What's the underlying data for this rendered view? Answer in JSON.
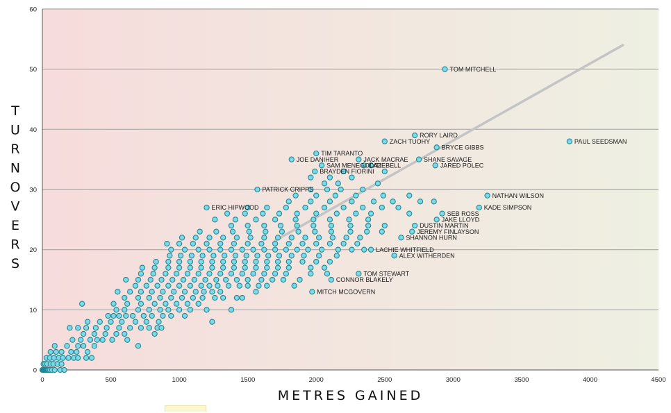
{
  "chart_data": {
    "type": "scatter",
    "xlabel": "METRES GAINED",
    "ylabel": "TURNOVERS",
    "xlim": [
      0,
      4500
    ],
    "ylim": [
      0,
      60
    ],
    "x_ticks": [
      0,
      500,
      1000,
      1500,
      2000,
      2500,
      3000,
      3500,
      4000,
      4500
    ],
    "y_ticks": [
      0,
      10,
      20,
      30,
      40,
      50,
      60
    ],
    "grid": "horizontal",
    "trendline": {
      "x": [
        1700,
        4240
      ],
      "y": [
        21.5,
        54
      ]
    },
    "colors": {
      "point_fill": "#7fd8e6",
      "point_stroke": "#1e8795",
      "trendline": "#c4c4c4",
      "grid": "#a8a8a8",
      "bg_left": "#f6dcdc",
      "bg_right": "#eef0e2"
    },
    "labeled_points": [
      {
        "name": "TOM MITCHELL",
        "x": 2940,
        "y": 50
      },
      {
        "name": "PAUL SEEDSMAN",
        "x": 3850,
        "y": 38
      },
      {
        "name": "RORY LAIRD",
        "x": 2720,
        "y": 39
      },
      {
        "name": "ZACH TUOHY",
        "x": 2500,
        "y": 38
      },
      {
        "name": "BRYCE GIBBS",
        "x": 2880,
        "y": 37
      },
      {
        "name": "TIM TARANTO",
        "x": 2000,
        "y": 36
      },
      {
        "name": "JOE DANIHER",
        "x": 1820,
        "y": 35
      },
      {
        "name": "JACK MACRAE",
        "x": 2310,
        "y": 35
      },
      {
        "name": "SHANE SAVAGE",
        "x": 2750,
        "y": 35
      },
      {
        "name": "SAM MENEGOLA",
        "x": 2040,
        "y": 34
      },
      {
        "name": "CAZ",
        "x": 2350,
        "y": 34
      },
      {
        "name": "TIEBELL",
        "x": 2400,
        "y": 34
      },
      {
        "name": "JARED POLEC",
        "x": 2870,
        "y": 34
      },
      {
        "name": "BRAYDEN FIORINI",
        "x": 1990,
        "y": 33
      },
      {
        "name": "PATRICK CRIPPS",
        "x": 1570,
        "y": 30
      },
      {
        "name": "NATHAN WILSON",
        "x": 3250,
        "y": 29
      },
      {
        "name": "ERIC HIPWOOD",
        "x": 1200,
        "y": 27
      },
      {
        "name": "KADE SIMPSON",
        "x": 3190,
        "y": 27
      },
      {
        "name": "SEB ROSS",
        "x": 2920,
        "y": 26
      },
      {
        "name": "JAKE LLOYD",
        "x": 2880,
        "y": 25
      },
      {
        "name": "DUSTIN MARTIN",
        "x": 2720,
        "y": 24
      },
      {
        "name": "JEREMY FINLAYSON",
        "x": 2700,
        "y": 23
      },
      {
        "name": "SHANNON HURN",
        "x": 2620,
        "y": 22
      },
      {
        "name": "LACHIE WHITFIELD",
        "x": 2400,
        "y": 20
      },
      {
        "name": "ALEX WITHERDEN",
        "x": 2570,
        "y": 19
      },
      {
        "name": "TOM STEWART",
        "x": 2310,
        "y": 16
      },
      {
        "name": "CONNOR BLAKELY",
        "x": 2110,
        "y": 15
      },
      {
        "name": "MITCH MCGOVERN",
        "x": 1970,
        "y": 13
      }
    ],
    "points": [
      [
        0,
        0
      ],
      [
        5,
        0
      ],
      [
        10,
        0
      ],
      [
        15,
        0
      ],
      [
        20,
        0
      ],
      [
        25,
        0
      ],
      [
        30,
        0
      ],
      [
        35,
        0
      ],
      [
        40,
        0
      ],
      [
        45,
        0
      ],
      [
        55,
        0
      ],
      [
        70,
        0
      ],
      [
        90,
        0
      ],
      [
        130,
        0
      ],
      [
        160,
        0
      ],
      [
        8,
        1
      ],
      [
        20,
        1
      ],
      [
        35,
        1
      ],
      [
        60,
        1
      ],
      [
        80,
        1
      ],
      [
        110,
        1
      ],
      [
        140,
        1
      ],
      [
        30,
        2
      ],
      [
        55,
        2
      ],
      [
        85,
        2
      ],
      [
        120,
        2
      ],
      [
        150,
        2
      ],
      [
        190,
        2
      ],
      [
        230,
        2
      ],
      [
        260,
        2
      ],
      [
        320,
        2
      ],
      [
        360,
        2
      ],
      [
        60,
        3
      ],
      [
        100,
        3
      ],
      [
        140,
        3
      ],
      [
        210,
        3
      ],
      [
        250,
        3
      ],
      [
        330,
        3
      ],
      [
        90,
        4
      ],
      [
        180,
        4
      ],
      [
        260,
        4
      ],
      [
        300,
        4
      ],
      [
        380,
        4
      ],
      [
        700,
        4
      ],
      [
        220,
        5
      ],
      [
        280,
        5
      ],
      [
        350,
        5
      ],
      [
        400,
        5
      ],
      [
        440,
        5
      ],
      [
        510,
        5
      ],
      [
        620,
        5
      ],
      [
        300,
        6
      ],
      [
        380,
        6
      ],
      [
        460,
        6
      ],
      [
        540,
        6
      ],
      [
        600,
        6
      ],
      [
        820,
        6
      ],
      [
        200,
        7
      ],
      [
        260,
        7
      ],
      [
        320,
        7
      ],
      [
        390,
        7
      ],
      [
        470,
        7
      ],
      [
        560,
        7
      ],
      [
        640,
        7
      ],
      [
        720,
        7
      ],
      [
        780,
        7
      ],
      [
        840,
        7
      ],
      [
        870,
        7
      ],
      [
        330,
        8
      ],
      [
        420,
        8
      ],
      [
        500,
        8
      ],
      [
        580,
        8
      ],
      [
        680,
        8
      ],
      [
        760,
        8
      ],
      [
        850,
        8
      ],
      [
        1240,
        8
      ],
      [
        480,
        9
      ],
      [
        520,
        9
      ],
      [
        560,
        9
      ],
      [
        610,
        9
      ],
      [
        660,
        9
      ],
      [
        740,
        9
      ],
      [
        800,
        9
      ],
      [
        880,
        9
      ],
      [
        940,
        9
      ],
      [
        1040,
        9
      ],
      [
        540,
        10
      ],
      [
        600,
        10
      ],
      [
        700,
        10
      ],
      [
        780,
        10
      ],
      [
        860,
        10
      ],
      [
        920,
        10
      ],
      [
        1000,
        10
      ],
      [
        1080,
        10
      ],
      [
        1200,
        10
      ],
      [
        1380,
        10
      ],
      [
        290,
        11
      ],
      [
        520,
        11
      ],
      [
        620,
        11
      ],
      [
        720,
        11
      ],
      [
        820,
        11
      ],
      [
        900,
        11
      ],
      [
        980,
        11
      ],
      [
        1060,
        11
      ],
      [
        1140,
        11
      ],
      [
        600,
        12
      ],
      [
        700,
        12
      ],
      [
        780,
        12
      ],
      [
        860,
        12
      ],
      [
        940,
        12
      ],
      [
        1020,
        12
      ],
      [
        1100,
        12
      ],
      [
        1170,
        12
      ],
      [
        1260,
        12
      ],
      [
        1320,
        12
      ],
      [
        1420,
        12
      ],
      [
        1460,
        12
      ],
      [
        550,
        13
      ],
      [
        640,
        13
      ],
      [
        720,
        13
      ],
      [
        800,
        13
      ],
      [
        880,
        13
      ],
      [
        960,
        13
      ],
      [
        1040,
        13
      ],
      [
        1120,
        13
      ],
      [
        1180,
        13
      ],
      [
        1240,
        13
      ],
      [
        1300,
        13
      ],
      [
        1560,
        13
      ],
      [
        680,
        14
      ],
      [
        760,
        14
      ],
      [
        840,
        14
      ],
      [
        920,
        14
      ],
      [
        1000,
        14
      ],
      [
        1080,
        14
      ],
      [
        1160,
        14
      ],
      [
        1220,
        14
      ],
      [
        1280,
        14
      ],
      [
        1360,
        14
      ],
      [
        1440,
        14
      ],
      [
        1500,
        14
      ],
      [
        1580,
        14
      ],
      [
        1640,
        14
      ],
      [
        1840,
        14
      ],
      [
        610,
        15
      ],
      [
        700,
        15
      ],
      [
        790,
        15
      ],
      [
        870,
        15
      ],
      [
        950,
        15
      ],
      [
        1030,
        15
      ],
      [
        1110,
        15
      ],
      [
        1190,
        15
      ],
      [
        1270,
        15
      ],
      [
        1340,
        15
      ],
      [
        1420,
        15
      ],
      [
        1500,
        15
      ],
      [
        1600,
        15
      ],
      [
        1680,
        15
      ],
      [
        1760,
        15
      ],
      [
        1880,
        15
      ],
      [
        720,
        16
      ],
      [
        810,
        16
      ],
      [
        900,
        16
      ],
      [
        980,
        16
      ],
      [
        1060,
        16
      ],
      [
        1140,
        16
      ],
      [
        1220,
        16
      ],
      [
        1300,
        16
      ],
      [
        1380,
        16
      ],
      [
        1460,
        16
      ],
      [
        1540,
        16
      ],
      [
        1620,
        16
      ],
      [
        1700,
        16
      ],
      [
        1780,
        16
      ],
      [
        1960,
        16
      ],
      [
        2080,
        16
      ],
      [
        730,
        17
      ],
      [
        820,
        17
      ],
      [
        920,
        17
      ],
      [
        1000,
        17
      ],
      [
        1080,
        17
      ],
      [
        1160,
        17
      ],
      [
        1240,
        17
      ],
      [
        1320,
        17
      ],
      [
        1400,
        17
      ],
      [
        1480,
        17
      ],
      [
        1560,
        17
      ],
      [
        1640,
        17
      ],
      [
        1720,
        17
      ],
      [
        1800,
        17
      ],
      [
        1960,
        17
      ],
      [
        2060,
        17
      ],
      [
        830,
        18
      ],
      [
        920,
        18
      ],
      [
        1000,
        18
      ],
      [
        1080,
        18
      ],
      [
        1160,
        18
      ],
      [
        1240,
        18
      ],
      [
        1320,
        18
      ],
      [
        1400,
        18
      ],
      [
        1480,
        18
      ],
      [
        1560,
        18
      ],
      [
        1640,
        18
      ],
      [
        1720,
        18
      ],
      [
        1800,
        18
      ],
      [
        1900,
        18
      ],
      [
        2000,
        18
      ],
      [
        2100,
        18
      ],
      [
        930,
        19
      ],
      [
        1010,
        19
      ],
      [
        1090,
        19
      ],
      [
        1170,
        19
      ],
      [
        1250,
        19
      ],
      [
        1330,
        19
      ],
      [
        1410,
        19
      ],
      [
        1490,
        19
      ],
      [
        1570,
        19
      ],
      [
        1650,
        19
      ],
      [
        1730,
        19
      ],
      [
        1820,
        19
      ],
      [
        1910,
        19
      ],
      [
        2020,
        19
      ],
      [
        2150,
        19
      ],
      [
        940,
        20
      ],
      [
        1040,
        20
      ],
      [
        1140,
        20
      ],
      [
        1220,
        20
      ],
      [
        1300,
        20
      ],
      [
        1380,
        20
      ],
      [
        1460,
        20
      ],
      [
        1540,
        20
      ],
      [
        1620,
        20
      ],
      [
        1700,
        20
      ],
      [
        1780,
        20
      ],
      [
        1860,
        20
      ],
      [
        1940,
        20
      ],
      [
        2040,
        20
      ],
      [
        2160,
        20
      ],
      [
        2260,
        20
      ],
      [
        2350,
        20
      ],
      [
        910,
        21
      ],
      [
        1000,
        21
      ],
      [
        1100,
        21
      ],
      [
        1200,
        21
      ],
      [
        1300,
        21
      ],
      [
        1400,
        21
      ],
      [
        1500,
        21
      ],
      [
        1600,
        21
      ],
      [
        1700,
        21
      ],
      [
        1800,
        21
      ],
      [
        1900,
        21
      ],
      [
        2000,
        21
      ],
      [
        2100,
        21
      ],
      [
        2200,
        21
      ],
      [
        2300,
        21
      ],
      [
        1020,
        22
      ],
      [
        1120,
        22
      ],
      [
        1220,
        22
      ],
      [
        1320,
        22
      ],
      [
        1420,
        22
      ],
      [
        1520,
        22
      ],
      [
        1620,
        22
      ],
      [
        1720,
        22
      ],
      [
        1820,
        22
      ],
      [
        1920,
        22
      ],
      [
        2020,
        22
      ],
      [
        2120,
        22
      ],
      [
        2220,
        22
      ],
      [
        2320,
        22
      ],
      [
        1150,
        23
      ],
      [
        1270,
        23
      ],
      [
        1390,
        23
      ],
      [
        1510,
        23
      ],
      [
        1630,
        23
      ],
      [
        1750,
        23
      ],
      [
        1870,
        23
      ],
      [
        1990,
        23
      ],
      [
        2110,
        23
      ],
      [
        2250,
        23
      ],
      [
        2370,
        23
      ],
      [
        2480,
        23
      ],
      [
        1380,
        24
      ],
      [
        1500,
        24
      ],
      [
        1620,
        24
      ],
      [
        1740,
        24
      ],
      [
        1860,
        24
      ],
      [
        1980,
        24
      ],
      [
        2110,
        24
      ],
      [
        2250,
        24
      ],
      [
        2380,
        24
      ],
      [
        2500,
        24
      ],
      [
        1260,
        25
      ],
      [
        1410,
        25
      ],
      [
        1560,
        25
      ],
      [
        1700,
        25
      ],
      [
        1850,
        25
      ],
      [
        1980,
        25
      ],
      [
        2100,
        25
      ],
      [
        2240,
        25
      ],
      [
        2380,
        25
      ],
      [
        1350,
        26
      ],
      [
        1480,
        26
      ],
      [
        1610,
        26
      ],
      [
        1730,
        26
      ],
      [
        1860,
        26
      ],
      [
        2000,
        26
      ],
      [
        2150,
        26
      ],
      [
        2290,
        26
      ],
      [
        2400,
        26
      ],
      [
        2680,
        26
      ],
      [
        1500,
        27
      ],
      [
        1640,
        27
      ],
      [
        1780,
        27
      ],
      [
        1920,
        27
      ],
      [
        2060,
        27
      ],
      [
        2200,
        27
      ],
      [
        2340,
        27
      ],
      [
        2480,
        27
      ],
      [
        2600,
        27
      ],
      [
        1800,
        28
      ],
      [
        1960,
        28
      ],
      [
        2100,
        28
      ],
      [
        2260,
        28
      ],
      [
        2420,
        28
      ],
      [
        2560,
        28
      ],
      [
        2760,
        28
      ],
      [
        2860,
        28
      ],
      [
        1850,
        29
      ],
      [
        2000,
        29
      ],
      [
        2140,
        29
      ],
      [
        2290,
        29
      ],
      [
        2490,
        29
      ],
      [
        2680,
        29
      ],
      [
        1960,
        30
      ],
      [
        2080,
        30
      ],
      [
        2180,
        30
      ],
      [
        2340,
        30
      ],
      [
        2450,
        31
      ],
      [
        2060,
        31
      ],
      [
        2160,
        31
      ],
      [
        2260,
        32
      ],
      [
        1960,
        32
      ],
      [
        2100,
        32
      ],
      [
        2200,
        33
      ],
      [
        2500,
        33
      ]
    ]
  }
}
